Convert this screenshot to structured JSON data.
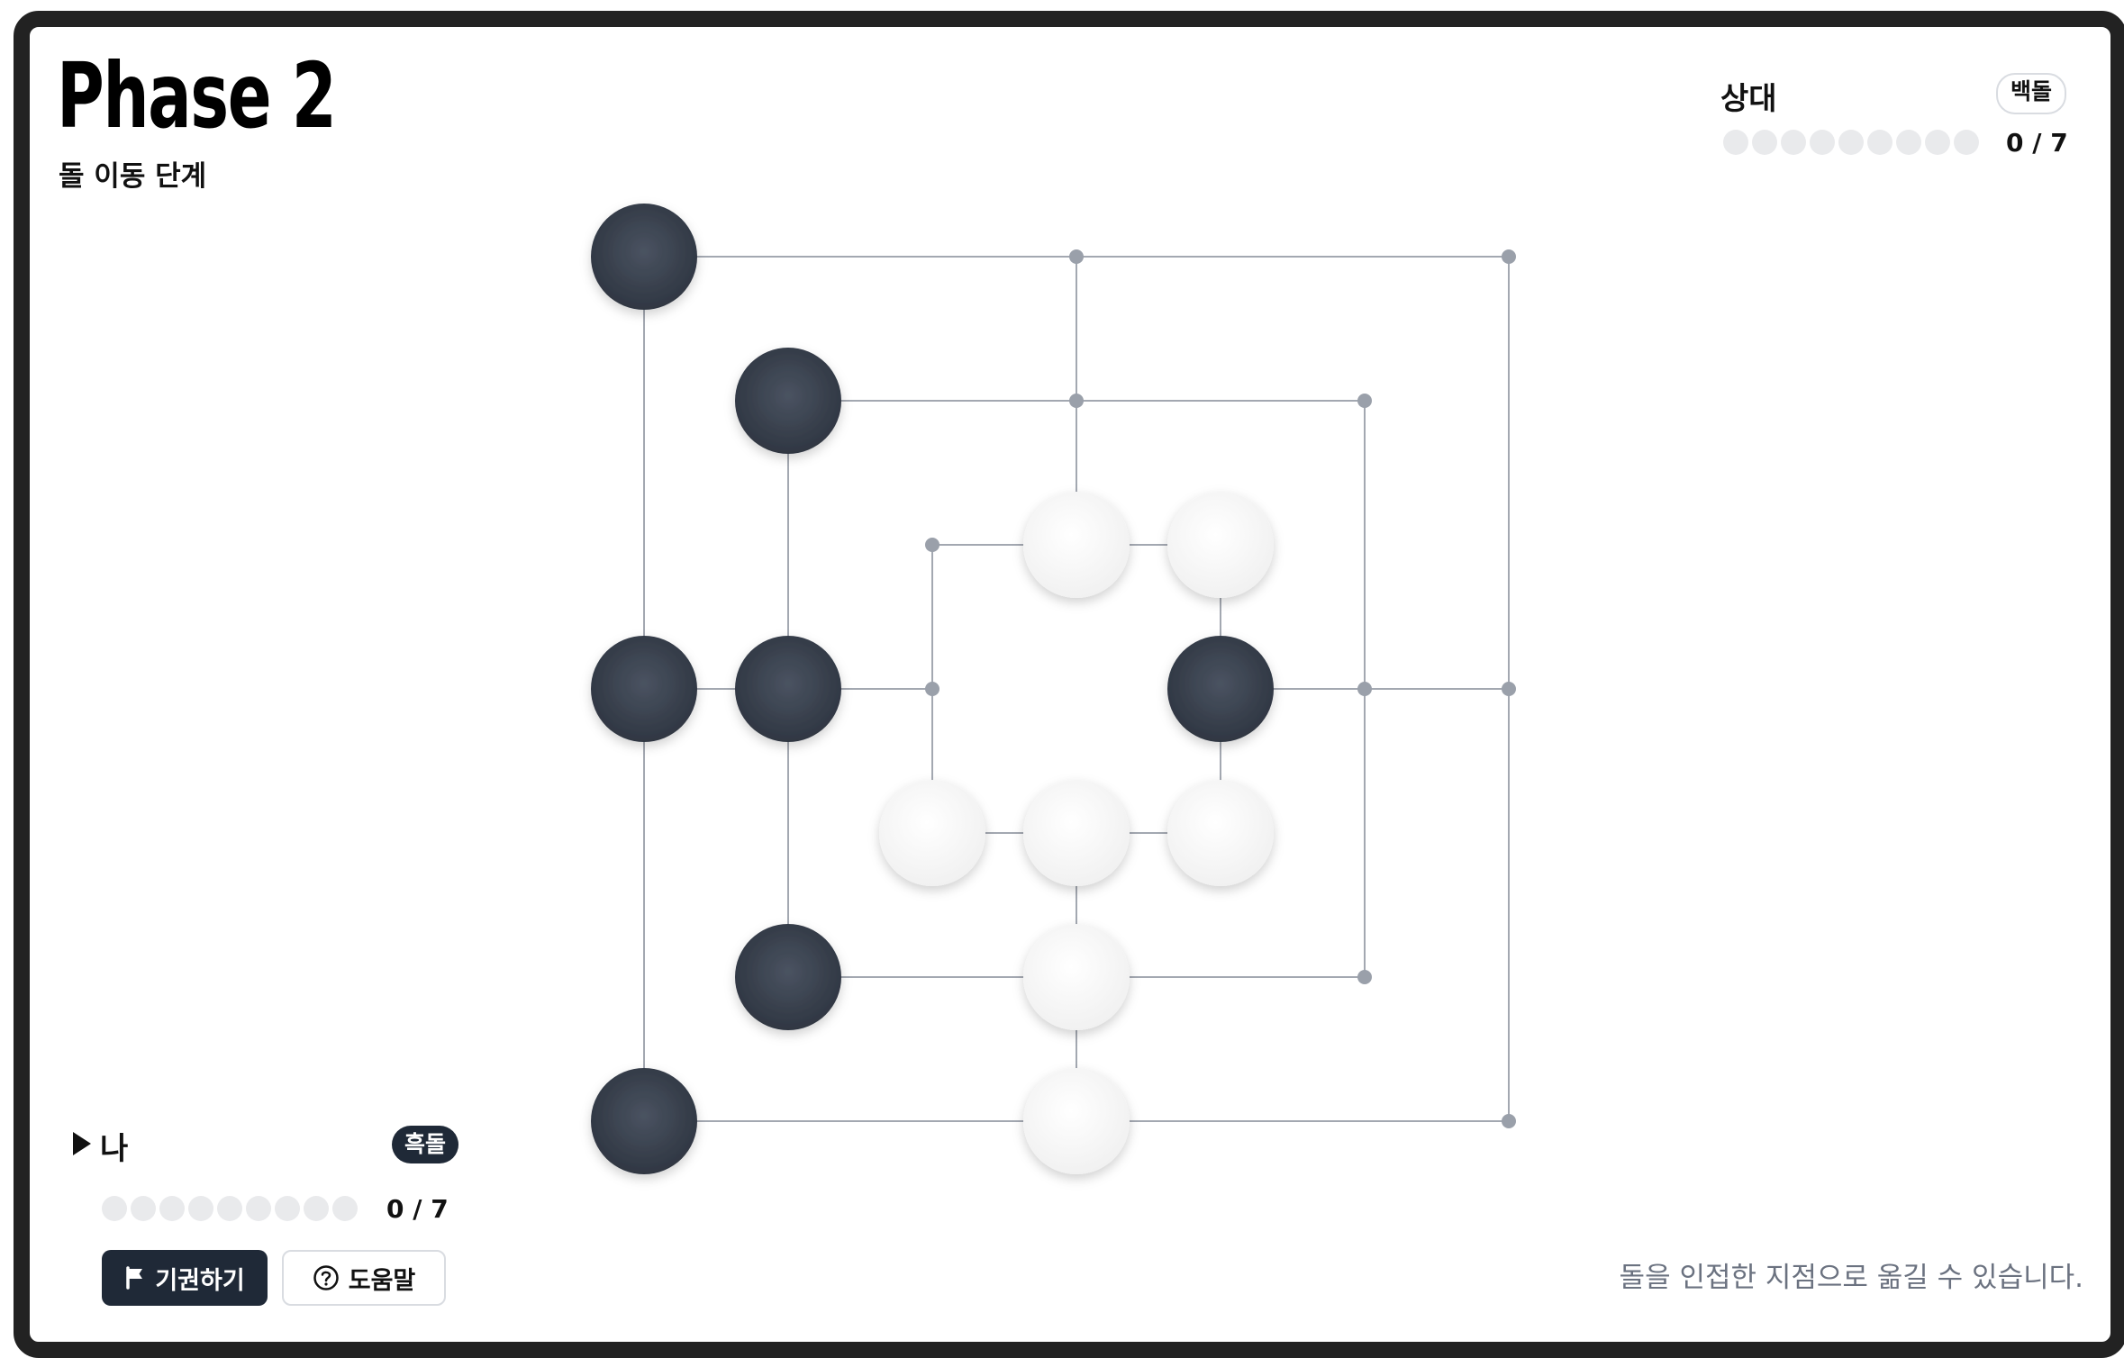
{
  "header": {
    "title": "Phase 2",
    "subtitle": "돌 이동 단계"
  },
  "opponent": {
    "name": "상대",
    "stone_label": "백돌",
    "captured_dots": 9,
    "count": "0 / 7"
  },
  "me": {
    "name": "나",
    "stone_label": "흑돌",
    "captured_dots": 9,
    "count": "0 / 7",
    "is_turn": true
  },
  "buttons": {
    "resign_label": "기권하기",
    "help_label": "도움말"
  },
  "hint": "돌을 인접한 지점으로 옮길 수 있습니다.",
  "colors": {
    "black_stone": "#3b4350",
    "white_stone": "#f7f7f7",
    "line": "#a3a8b1",
    "point": "#9aa0aa",
    "frame": "#222222"
  },
  "board": {
    "grid_size": 7,
    "rings": 3,
    "points": [
      {
        "c": 0,
        "r": 0,
        "stone": "black"
      },
      {
        "c": 3,
        "r": 0,
        "stone": null
      },
      {
        "c": 6,
        "r": 0,
        "stone": null
      },
      {
        "c": 1,
        "r": 1,
        "stone": "black"
      },
      {
        "c": 3,
        "r": 1,
        "stone": null
      },
      {
        "c": 5,
        "r": 1,
        "stone": null
      },
      {
        "c": 2,
        "r": 2,
        "stone": null
      },
      {
        "c": 3,
        "r": 2,
        "stone": "white"
      },
      {
        "c": 4,
        "r": 2,
        "stone": "white"
      },
      {
        "c": 0,
        "r": 3,
        "stone": "black"
      },
      {
        "c": 1,
        "r": 3,
        "stone": "black"
      },
      {
        "c": 2,
        "r": 3,
        "stone": null
      },
      {
        "c": 4,
        "r": 3,
        "stone": "black"
      },
      {
        "c": 5,
        "r": 3,
        "stone": null
      },
      {
        "c": 6,
        "r": 3,
        "stone": null
      },
      {
        "c": 2,
        "r": 4,
        "stone": "white"
      },
      {
        "c": 3,
        "r": 4,
        "stone": "white"
      },
      {
        "c": 4,
        "r": 4,
        "stone": "white"
      },
      {
        "c": 1,
        "r": 5,
        "stone": "black"
      },
      {
        "c": 3,
        "r": 5,
        "stone": "white"
      },
      {
        "c": 5,
        "r": 5,
        "stone": null
      },
      {
        "c": 0,
        "r": 6,
        "stone": "black"
      },
      {
        "c": 3,
        "r": 6,
        "stone": "white"
      },
      {
        "c": 6,
        "r": 6,
        "stone": null
      }
    ]
  }
}
